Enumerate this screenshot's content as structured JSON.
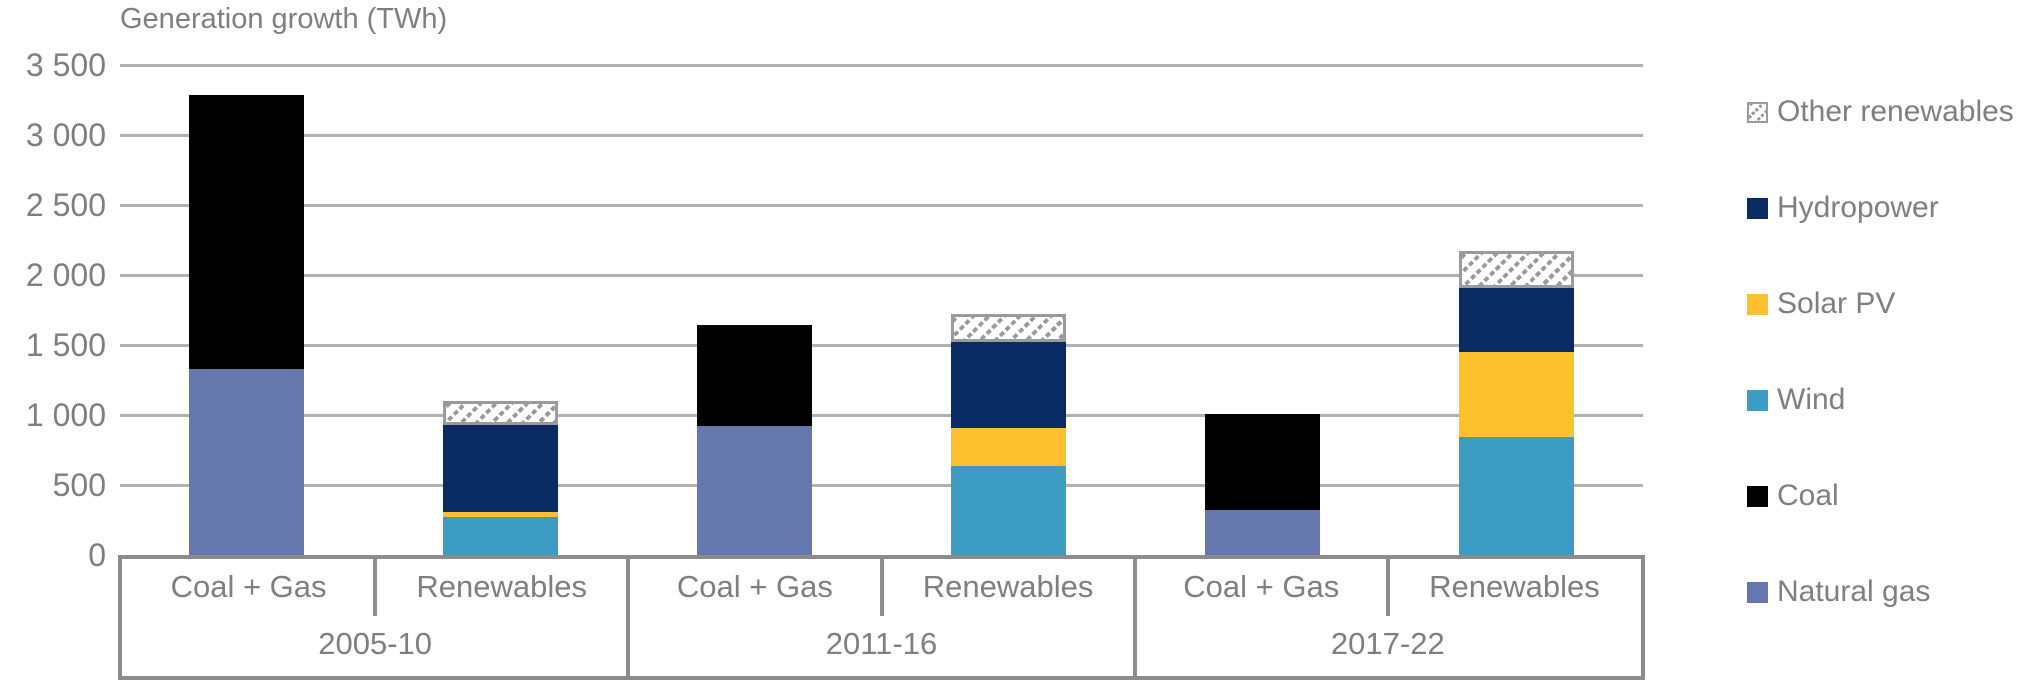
{
  "title": "Generation growth (TWh)",
  "y_axis": {
    "tick_labels": [
      "3 500",
      "3 000",
      "2 500",
      "2 000",
      "1 500",
      "1 000",
      "500",
      "0"
    ],
    "min": 0,
    "max": 3500,
    "step": 500
  },
  "legend": {
    "position": "right",
    "items": [
      {
        "id": "other-renewables",
        "label": "Other renewables",
        "swatch": "hatch"
      },
      {
        "id": "hydropower",
        "label": "Hydropower",
        "swatch": "#0A2A63"
      },
      {
        "id": "solar-pv",
        "label": "Solar PV",
        "swatch": "#FCC12D"
      },
      {
        "id": "wind",
        "label": "Wind",
        "swatch": "#3D9CC3"
      },
      {
        "id": "coal",
        "label": "Coal",
        "swatch": "#000000"
      },
      {
        "id": "natural-gas",
        "label": "Natural gas",
        "swatch": "#6677AE"
      }
    ]
  },
  "colors": {
    "natural_gas": "#6677AE",
    "coal": "#000000",
    "wind": "#3D9CC3",
    "solar_pv": "#FCC12D",
    "hydropower": "#0A2A63",
    "other_renewables_pattern": "gray diagonal dashed hatch on white",
    "text": "#7F7F7F",
    "gridline": "#B2B2B2",
    "axis_line": "#8C8C8C"
  },
  "colors_by_series": {
    "Natural gas": "#6677AE",
    "Coal": "#000000",
    "Wind": "#3D9CC3",
    "Solar PV": "#FCC12D",
    "Hydropower": "#0A2A63",
    "Other renewables": "hatch"
  },
  "chart_data": {
    "type": "bar",
    "stacked": true,
    "title": "Generation growth (TWh)",
    "unit": "TWh",
    "ylim": [
      0,
      3500
    ],
    "y_tick_step": 500,
    "grid": "horizontal",
    "legend_position": "right",
    "groups": [
      "2005-10",
      "2011-16",
      "2017-22"
    ],
    "categories": [
      "Coal + Gas",
      "Renewables"
    ],
    "stack_order_bottom_to_top": {
      "Coal + Gas": [
        "Natural gas",
        "Coal"
      ],
      "Renewables": [
        "Wind",
        "Solar PV",
        "Hydropower",
        "Other renewables"
      ]
    },
    "bars": [
      {
        "group": "2005-10",
        "category": "Coal + Gas",
        "segments": [
          {
            "series": "Natural gas",
            "value": 1330
          },
          {
            "series": "Coal",
            "value": 1955
          }
        ],
        "total": 3285
      },
      {
        "group": "2005-10",
        "category": "Renewables",
        "segments": [
          {
            "series": "Wind",
            "value": 270
          },
          {
            "series": "Solar PV",
            "value": 35
          },
          {
            "series": "Hydropower",
            "value": 625
          },
          {
            "series": "Other renewables",
            "value": 170
          }
        ],
        "total": 1100
      },
      {
        "group": "2011-16",
        "category": "Coal + Gas",
        "segments": [
          {
            "series": "Natural gas",
            "value": 920
          },
          {
            "series": "Coal",
            "value": 720
          }
        ],
        "total": 1640
      },
      {
        "group": "2011-16",
        "category": "Renewables",
        "segments": [
          {
            "series": "Wind",
            "value": 635
          },
          {
            "series": "Solar PV",
            "value": 270
          },
          {
            "series": "Hydropower",
            "value": 620
          },
          {
            "series": "Other renewables",
            "value": 200
          }
        ],
        "total": 1725
      },
      {
        "group": "2017-22",
        "category": "Coal + Gas",
        "segments": [
          {
            "series": "Natural gas",
            "value": 320
          },
          {
            "series": "Coal",
            "value": 690
          }
        ],
        "total": 1010
      },
      {
        "group": "2017-22",
        "category": "Renewables",
        "segments": [
          {
            "series": "Wind",
            "value": 840
          },
          {
            "series": "Solar PV",
            "value": 610
          },
          {
            "series": "Hydropower",
            "value": 460
          },
          {
            "series": "Other renewables",
            "value": 260
          }
        ],
        "total": 2170
      }
    ]
  }
}
